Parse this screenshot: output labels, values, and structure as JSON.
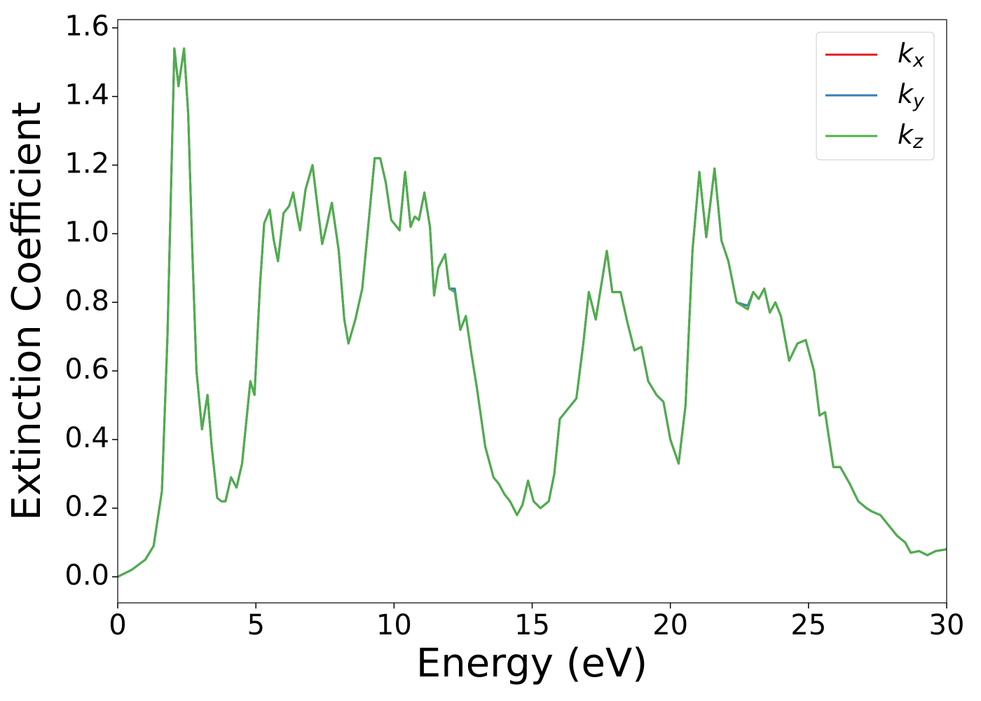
{
  "chart_data": {
    "type": "line",
    "xlabel": "Energy (eV)",
    "ylabel": "Extinction Coefficient",
    "x": [
      0,
      0.5,
      1.0,
      1.3,
      1.6,
      1.8,
      1.95,
      2.05,
      2.2,
      2.4,
      2.55,
      2.7,
      2.85,
      3.05,
      3.25,
      3.4,
      3.6,
      3.75,
      3.9,
      4.1,
      4.3,
      4.5,
      4.8,
      4.95,
      5.15,
      5.3,
      5.5,
      5.65,
      5.8,
      6.0,
      6.2,
      6.35,
      6.5,
      6.6,
      6.8,
      7.05,
      7.2,
      7.4,
      7.55,
      7.75,
      8.0,
      8.2,
      8.35,
      8.6,
      8.85,
      9.1,
      9.3,
      9.5,
      9.7,
      9.9,
      10.2,
      10.4,
      10.6,
      10.75,
      10.9,
      11.1,
      11.3,
      11.45,
      11.6,
      11.85,
      12.0,
      12.2,
      12.4,
      12.6,
      12.8,
      13.0,
      13.3,
      13.6,
      13.8,
      14.0,
      14.2,
      14.45,
      14.65,
      14.85,
      15.05,
      15.3,
      15.6,
      15.8,
      16.0,
      16.3,
      16.6,
      16.85,
      17.05,
      17.3,
      17.5,
      17.7,
      17.9,
      18.2,
      18.45,
      18.7,
      18.95,
      19.2,
      19.5,
      19.75,
      20.0,
      20.3,
      20.55,
      20.8,
      21.05,
      21.3,
      21.6,
      21.85,
      22.1,
      22.4,
      22.8,
      23.0,
      23.2,
      23.4,
      23.6,
      23.8,
      24.0,
      24.3,
      24.6,
      24.9,
      25.2,
      25.4,
      25.6,
      25.9,
      26.15,
      26.5,
      26.8,
      27.1,
      27.3,
      27.6,
      27.9,
      28.2,
      28.5,
      28.7,
      29.0,
      29.3,
      29.6,
      30.0
    ],
    "series": [
      {
        "name": "kx",
        "color": "#e41a1c",
        "values": [
          0,
          0.02,
          0.05,
          0.09,
          0.25,
          0.7,
          1.2,
          1.54,
          1.43,
          1.54,
          1.35,
          0.95,
          0.6,
          0.43,
          0.53,
          0.38,
          0.23,
          0.22,
          0.22,
          0.29,
          0.26,
          0.33,
          0.57,
          0.53,
          0.85,
          1.03,
          1.07,
          0.98,
          0.92,
          1.06,
          1.08,
          1.12,
          1.05,
          1.01,
          1.13,
          1.2,
          1.1,
          0.97,
          1.02,
          1.09,
          0.95,
          0.75,
          0.68,
          0.75,
          0.84,
          1.05,
          1.22,
          1.22,
          1.15,
          1.04,
          1.01,
          1.18,
          1.02,
          1.05,
          1.04,
          1.12,
          1.02,
          0.82,
          0.9,
          0.94,
          0.84,
          0.83,
          0.72,
          0.76,
          0.65,
          0.55,
          0.38,
          0.29,
          0.27,
          0.24,
          0.22,
          0.18,
          0.21,
          0.28,
          0.22,
          0.2,
          0.22,
          0.3,
          0.46,
          0.49,
          0.52,
          0.68,
          0.83,
          0.75,
          0.85,
          0.95,
          0.83,
          0.83,
          0.74,
          0.66,
          0.67,
          0.57,
          0.53,
          0.51,
          0.4,
          0.33,
          0.5,
          0.95,
          1.18,
          0.99,
          1.19,
          0.98,
          0.92,
          0.8,
          0.78,
          0.83,
          0.81,
          0.84,
          0.77,
          0.8,
          0.76,
          0.63,
          0.68,
          0.69,
          0.6,
          0.47,
          0.48,
          0.32,
          0.32,
          0.27,
          0.22,
          0.2,
          0.19,
          0.18,
          0.15,
          0.12,
          0.1,
          0.07,
          0.075,
          0.063,
          0.075,
          0.08
        ]
      },
      {
        "name": "ky",
        "color": "#377eb8",
        "values": [
          0,
          0.02,
          0.05,
          0.09,
          0.25,
          0.7,
          1.2,
          1.54,
          1.43,
          1.54,
          1.35,
          0.95,
          0.6,
          0.43,
          0.53,
          0.38,
          0.23,
          0.22,
          0.22,
          0.29,
          0.26,
          0.33,
          0.57,
          0.53,
          0.85,
          1.03,
          1.07,
          0.98,
          0.92,
          1.06,
          1.08,
          1.12,
          1.05,
          1.01,
          1.13,
          1.2,
          1.1,
          0.97,
          1.02,
          1.09,
          0.95,
          0.75,
          0.68,
          0.75,
          0.84,
          1.05,
          1.22,
          1.22,
          1.15,
          1.04,
          1.01,
          1.18,
          1.02,
          1.05,
          1.04,
          1.12,
          1.02,
          0.82,
          0.9,
          0.94,
          0.84,
          0.84,
          0.72,
          0.76,
          0.65,
          0.55,
          0.38,
          0.29,
          0.27,
          0.24,
          0.22,
          0.18,
          0.21,
          0.28,
          0.22,
          0.2,
          0.22,
          0.3,
          0.46,
          0.49,
          0.52,
          0.68,
          0.83,
          0.75,
          0.85,
          0.95,
          0.83,
          0.83,
          0.74,
          0.66,
          0.67,
          0.57,
          0.53,
          0.51,
          0.4,
          0.33,
          0.5,
          0.95,
          1.18,
          0.99,
          1.19,
          0.98,
          0.92,
          0.8,
          0.79,
          0.83,
          0.81,
          0.84,
          0.77,
          0.8,
          0.76,
          0.63,
          0.68,
          0.69,
          0.6,
          0.47,
          0.48,
          0.32,
          0.32,
          0.27,
          0.22,
          0.2,
          0.19,
          0.18,
          0.15,
          0.12,
          0.1,
          0.07,
          0.075,
          0.063,
          0.075,
          0.08
        ]
      },
      {
        "name": "kz",
        "color": "#4daf4a",
        "values": [
          0,
          0.02,
          0.05,
          0.09,
          0.25,
          0.7,
          1.2,
          1.54,
          1.43,
          1.54,
          1.35,
          0.95,
          0.6,
          0.43,
          0.53,
          0.38,
          0.23,
          0.22,
          0.22,
          0.29,
          0.26,
          0.33,
          0.57,
          0.53,
          0.85,
          1.03,
          1.07,
          0.98,
          0.92,
          1.06,
          1.08,
          1.12,
          1.05,
          1.01,
          1.13,
          1.2,
          1.1,
          0.97,
          1.02,
          1.09,
          0.95,
          0.75,
          0.68,
          0.75,
          0.84,
          1.05,
          1.22,
          1.22,
          1.15,
          1.04,
          1.01,
          1.18,
          1.02,
          1.05,
          1.04,
          1.12,
          1.02,
          0.82,
          0.9,
          0.94,
          0.84,
          0.83,
          0.72,
          0.76,
          0.65,
          0.55,
          0.38,
          0.29,
          0.27,
          0.24,
          0.22,
          0.18,
          0.21,
          0.28,
          0.22,
          0.2,
          0.22,
          0.3,
          0.46,
          0.49,
          0.52,
          0.68,
          0.83,
          0.75,
          0.85,
          0.95,
          0.83,
          0.83,
          0.74,
          0.66,
          0.67,
          0.57,
          0.53,
          0.51,
          0.4,
          0.33,
          0.5,
          0.95,
          1.18,
          0.99,
          1.19,
          0.98,
          0.92,
          0.8,
          0.78,
          0.83,
          0.81,
          0.84,
          0.77,
          0.8,
          0.76,
          0.63,
          0.68,
          0.69,
          0.6,
          0.47,
          0.48,
          0.32,
          0.32,
          0.27,
          0.22,
          0.2,
          0.19,
          0.18,
          0.15,
          0.12,
          0.1,
          0.07,
          0.075,
          0.063,
          0.075,
          0.08
        ]
      }
    ],
    "xlim": [
      0,
      30
    ],
    "xticks": [
      0,
      5,
      10,
      15,
      20,
      25,
      30
    ],
    "ylim": [
      -0.076,
      1.624
    ],
    "yticks": [
      {
        "value": 0,
        "label": "0.0"
      },
      {
        "value": 0.2,
        "label": "0.2"
      },
      {
        "value": 0.4,
        "label": "0.4"
      },
      {
        "value": 0.6,
        "label": "0.6"
      },
      {
        "value": 0.8,
        "label": "0.8"
      },
      {
        "value": 1,
        "label": "1.0"
      },
      {
        "value": 1.2,
        "label": "1.2"
      },
      {
        "value": 1.4,
        "label": "1.4"
      },
      {
        "value": 1.6,
        "label": "1.6"
      }
    ],
    "grid": false,
    "legend": "upper right"
  }
}
